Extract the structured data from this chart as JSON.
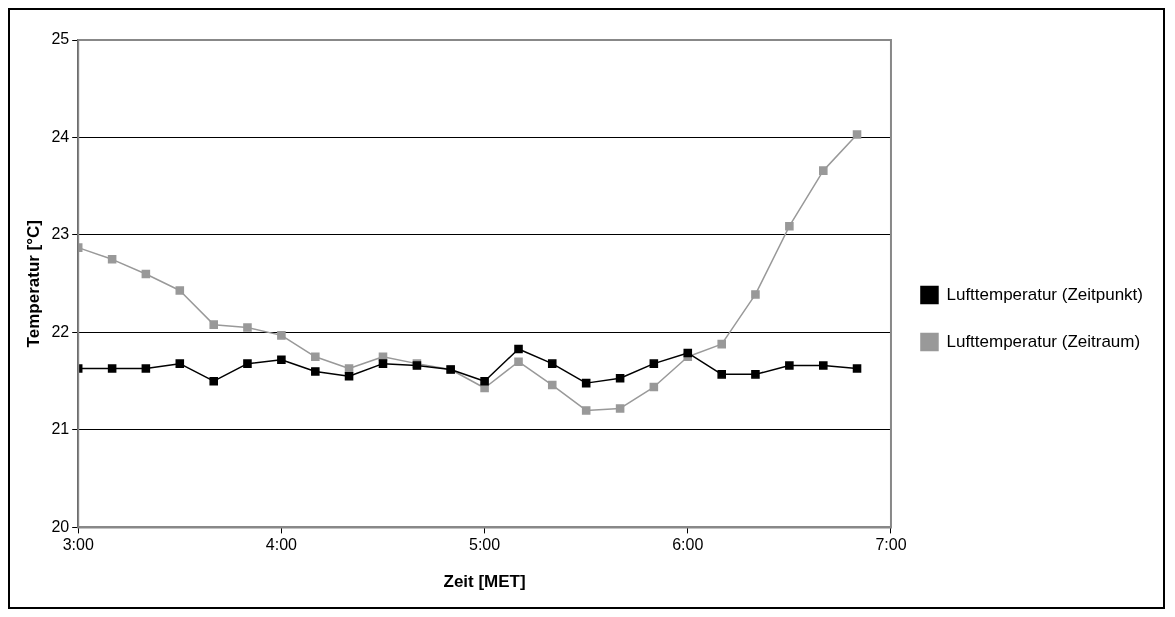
{
  "chart_data": {
    "type": "line",
    "xlabel": "Zeit [MET]",
    "ylabel": "Temperatur [°C]",
    "x": [
      3,
      3.167,
      3.333,
      3.5,
      3.667,
      3.833,
      4,
      4.167,
      4.333,
      4.5,
      4.667,
      4.833,
      5,
      5.167,
      5.333,
      5.5,
      5.667,
      5.833,
      6,
      6.167,
      6.333,
      6.5,
      6.667,
      6.833
    ],
    "series": [
      {
        "name": "Lufttemperatur (Zeitraum)",
        "color": "#999999",
        "values": [
          22.87,
          22.75,
          22.6,
          22.43,
          22.08,
          22.05,
          21.97,
          21.75,
          21.63,
          21.75,
          21.68,
          21.62,
          21.43,
          21.7,
          21.46,
          21.2,
          21.22,
          21.44,
          21.75,
          21.88,
          22.39,
          23.09,
          23.66,
          24.03
        ]
      },
      {
        "name": "Lufttemperatur (Zeitpunkt)",
        "color": "#000000",
        "values": [
          21.63,
          21.63,
          21.63,
          21.68,
          21.5,
          21.68,
          21.72,
          21.6,
          21.55,
          21.68,
          21.66,
          21.62,
          21.5,
          21.83,
          21.68,
          21.48,
          21.53,
          21.68,
          21.79,
          21.57,
          21.57,
          21.66,
          21.66,
          21.63
        ]
      }
    ],
    "xlim": [
      3,
      7
    ],
    "xticks": [
      {
        "value": 3,
        "label": "3:00"
      },
      {
        "value": 4,
        "label": "4:00"
      },
      {
        "value": 5,
        "label": "5:00"
      },
      {
        "value": 6,
        "label": "6:00"
      },
      {
        "value": 7,
        "label": "7:00"
      }
    ],
    "ylim": [
      20,
      25
    ],
    "yticks": [
      20,
      21,
      22,
      23,
      24,
      25
    ],
    "grid": "y",
    "legend": "right",
    "marker": "square",
    "line_style": "solid"
  }
}
